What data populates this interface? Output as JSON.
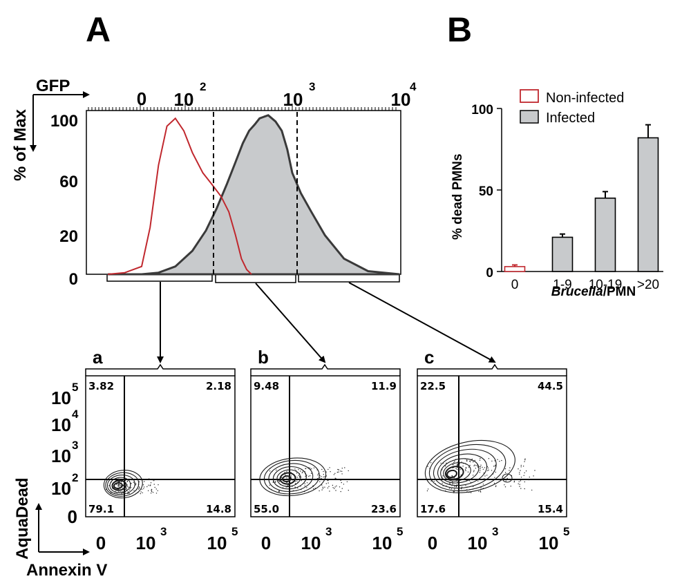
{
  "panels": {
    "A": "A",
    "B": "B"
  },
  "colors": {
    "noninfected": "#c0272d",
    "infected_fill": "#c8cacc",
    "infected_line": "#3a3a3a",
    "bar_fill": "#c8cacc"
  },
  "chart_data": [
    {
      "type": "area",
      "panel": "A",
      "xlabel": "GFP",
      "ylabel": "% of Max",
      "x_ticks": [
        {
          "label": "0"
        },
        {
          "label": "10",
          "sup": "2"
        },
        {
          "label": "10",
          "sup": "3"
        },
        {
          "label": "10",
          "sup": "4"
        }
      ],
      "y_ticks": [
        "100",
        "60",
        "20",
        "0"
      ],
      "ylim": [
        0,
        105
      ],
      "x_scale": "biexponential",
      "series": [
        {
          "role": "non-infected",
          "x": [
            -80,
            -40,
            0,
            20,
            40,
            60,
            80,
            100,
            120,
            150,
            180,
            220,
            260,
            300,
            340,
            380,
            420
          ],
          "y": [
            0,
            1,
            5,
            30,
            70,
            95,
            100,
            92,
            78,
            65,
            58,
            50,
            40,
            25,
            10,
            3,
            0
          ]
        },
        {
          "role": "infected",
          "x": [
            -80,
            0,
            40,
            80,
            120,
            160,
            200,
            250,
            300,
            350,
            400,
            450,
            500,
            600,
            700,
            800,
            900,
            1000,
            1200,
            1500,
            2000,
            3000,
            5000,
            10000
          ],
          "y": [
            0,
            0,
            1,
            5,
            15,
            28,
            42,
            58,
            72,
            84,
            92,
            96,
            100,
            102,
            98,
            92,
            80,
            65,
            52,
            40,
            25,
            10,
            2,
            0
          ]
        }
      ],
      "gates": [
        {
          "id": "a",
          "x_range": [
            -80,
            270
          ]
        },
        {
          "id": "b",
          "x_range": [
            270,
            1000
          ]
        },
        {
          "id": "c",
          "x_range": [
            1000,
            10000
          ]
        }
      ]
    },
    {
      "type": "bar",
      "panel": "B",
      "categories": [
        "0",
        "1-9",
        "10-19",
        ">20"
      ],
      "values": [
        3,
        21,
        45,
        82
      ],
      "errors": [
        1,
        2,
        4,
        8
      ],
      "xlabel_italic": "Brucella",
      "xlabel_rest": "/PMN",
      "ylabel": "% dead PMNs",
      "y_ticks": [
        "100",
        "50",
        "0"
      ],
      "ylim": [
        0,
        100
      ],
      "legend": [
        "Non-infected",
        "Infected"
      ],
      "legend_position": "top-right"
    },
    {
      "type": "scatter",
      "subpanels": [
        {
          "id": "a",
          "ul": "3.82",
          "ur": "2.18",
          "ll": "79.1",
          "lr": "14.8"
        },
        {
          "id": "b",
          "ul": "9.48",
          "ur": "11.9",
          "ll": "55.0",
          "lr": "23.6"
        },
        {
          "id": "c",
          "ul": "22.5",
          "ur": "44.5",
          "ll": "17.6",
          "lr": "15.4"
        }
      ],
      "xlabel": "Annexin V",
      "ylabel": "AquaDead",
      "x_ticks": [
        {
          "label": "0"
        },
        {
          "label": "10",
          "sup": "3"
        },
        {
          "label": "10",
          "sup": "5"
        }
      ],
      "y_ticks": [
        {
          "label": "10",
          "sup": "5"
        },
        {
          "label": "10",
          "sup": "4"
        },
        {
          "label": "10",
          "sup": "3"
        },
        {
          "label": "10",
          "sup": "2"
        },
        {
          "label": "0"
        }
      ]
    }
  ]
}
